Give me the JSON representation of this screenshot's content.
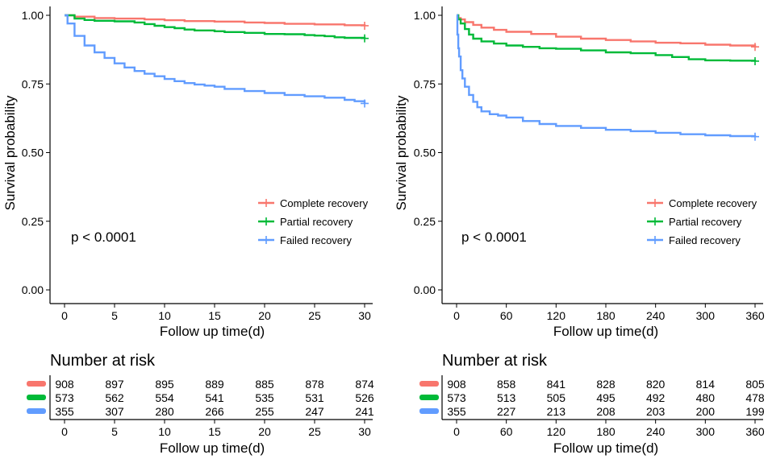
{
  "colors": {
    "complete": "#F8766D",
    "partial": "#00BA38",
    "failed": "#619CFF"
  },
  "chart_data": [
    {
      "type": "line",
      "subtype": "kaplan-meier",
      "xlabel": "Follow up time(d)",
      "ylabel": "Survival probability",
      "xlim": [
        0,
        30
      ],
      "ylim": [
        0,
        1
      ],
      "xticks": [
        0,
        5,
        10,
        15,
        20,
        25,
        30
      ],
      "yticks": [
        0.0,
        0.25,
        0.5,
        0.75,
        1.0
      ],
      "ytick_labels": [
        "0.00",
        "0.25",
        "0.50",
        "0.75",
        "1.00"
      ],
      "pvalue": "p < 0.0001",
      "legend": [
        "Complete recovery",
        "Partial recovery",
        "Failed recovery"
      ],
      "series": [
        {
          "name": "Complete recovery",
          "color_key": "complete",
          "x": [
            0,
            1,
            3,
            5,
            8,
            10,
            12,
            15,
            18,
            20,
            22,
            25,
            28,
            30
          ],
          "y": [
            1.0,
            0.995,
            0.99,
            0.988,
            0.985,
            0.982,
            0.979,
            0.977,
            0.974,
            0.972,
            0.969,
            0.967,
            0.964,
            0.962
          ]
        },
        {
          "name": "Partial recovery",
          "color_key": "partial",
          "x": [
            0,
            1,
            2,
            3,
            5,
            7,
            8,
            9,
            10,
            11,
            12,
            13,
            15,
            16,
            18,
            20,
            22,
            24,
            25,
            26,
            27,
            28,
            30
          ],
          "y": [
            1.0,
            0.988,
            0.983,
            0.98,
            0.978,
            0.974,
            0.968,
            0.962,
            0.957,
            0.953,
            0.948,
            0.945,
            0.942,
            0.939,
            0.936,
            0.932,
            0.931,
            0.928,
            0.926,
            0.924,
            0.92,
            0.918,
            0.916
          ]
        },
        {
          "name": "Failed recovery",
          "color_key": "failed",
          "x": [
            0,
            0.3,
            1,
            2,
            3,
            4,
            5,
            6,
            7,
            8,
            9,
            10,
            11,
            12,
            13,
            14,
            15,
            16,
            18,
            20,
            22,
            24,
            26,
            28,
            29,
            30
          ],
          "y": [
            1.0,
            0.97,
            0.925,
            0.89,
            0.865,
            0.845,
            0.825,
            0.81,
            0.797,
            0.787,
            0.778,
            0.768,
            0.76,
            0.753,
            0.748,
            0.744,
            0.74,
            0.732,
            0.724,
            0.717,
            0.71,
            0.705,
            0.7,
            0.692,
            0.687,
            0.679
          ]
        }
      ],
      "risk_table": {
        "title": "Number at risk",
        "xlabel": "Follow up time(d)",
        "times": [
          0,
          5,
          10,
          15,
          20,
          25,
          30
        ],
        "rows": [
          {
            "color_key": "complete",
            "values": [
              "908",
              "897",
              "895",
              "889",
              "885",
              "878",
              "874"
            ]
          },
          {
            "color_key": "partial",
            "values": [
              "573",
              "562",
              "554",
              "541",
              "535",
              "531",
              "526"
            ]
          },
          {
            "color_key": "failed",
            "values": [
              "355",
              "307",
              "280",
              "266",
              "255",
              "247",
              "241"
            ]
          }
        ]
      }
    },
    {
      "type": "line",
      "subtype": "kaplan-meier",
      "xlabel": "Follow up time(d)",
      "ylabel": "Survival probability",
      "xlim": [
        0,
        360
      ],
      "ylim": [
        0,
        1
      ],
      "xticks": [
        0,
        60,
        120,
        180,
        240,
        300,
        360
      ],
      "yticks": [
        0.0,
        0.25,
        0.5,
        0.75,
        1.0
      ],
      "ytick_labels": [
        "0.00",
        "0.25",
        "0.50",
        "0.75",
        "1.00"
      ],
      "pvalue": "p < 0.0001",
      "legend": [
        "Complete recovery",
        "Partial recovery",
        "Failed recovery"
      ],
      "series": [
        {
          "name": "Complete recovery",
          "color_key": "complete",
          "x": [
            0,
            2,
            5,
            10,
            20,
            30,
            45,
            60,
            90,
            120,
            150,
            180,
            210,
            240,
            270,
            300,
            330,
            360
          ],
          "y": [
            1.0,
            0.99,
            0.985,
            0.975,
            0.965,
            0.955,
            0.947,
            0.94,
            0.932,
            0.922,
            0.915,
            0.91,
            0.905,
            0.9,
            0.898,
            0.893,
            0.89,
            0.885
          ]
        },
        {
          "name": "Partial recovery",
          "color_key": "partial",
          "x": [
            0,
            2,
            5,
            10,
            15,
            20,
            30,
            45,
            60,
            80,
            100,
            120,
            150,
            180,
            210,
            240,
            260,
            280,
            300,
            330,
            360
          ],
          "y": [
            1.0,
            0.985,
            0.97,
            0.95,
            0.93,
            0.915,
            0.905,
            0.897,
            0.89,
            0.885,
            0.88,
            0.878,
            0.872,
            0.865,
            0.862,
            0.855,
            0.848,
            0.84,
            0.836,
            0.835,
            0.833
          ]
        },
        {
          "name": "Failed recovery",
          "color_key": "failed",
          "x": [
            0,
            1,
            2,
            3,
            5,
            7,
            10,
            15,
            20,
            25,
            30,
            40,
            50,
            60,
            80,
            100,
            120,
            150,
            180,
            210,
            240,
            270,
            300,
            330,
            360
          ],
          "y": [
            1.0,
            0.93,
            0.88,
            0.85,
            0.8,
            0.77,
            0.74,
            0.71,
            0.685,
            0.665,
            0.65,
            0.64,
            0.635,
            0.628,
            0.615,
            0.604,
            0.597,
            0.59,
            0.583,
            0.578,
            0.572,
            0.567,
            0.563,
            0.56,
            0.558
          ]
        }
      ],
      "risk_table": {
        "title": "Number at risk",
        "xlabel": "Follow up time(d)",
        "times": [
          0,
          60,
          120,
          180,
          240,
          300,
          360
        ],
        "rows": [
          {
            "color_key": "complete",
            "values": [
              "908",
              "858",
              "841",
              "828",
              "820",
              "814",
              "805"
            ]
          },
          {
            "color_key": "partial",
            "values": [
              "573",
              "513",
              "505",
              "495",
              "492",
              "480",
              "478"
            ]
          },
          {
            "color_key": "failed",
            "values": [
              "355",
              "227",
              "213",
              "208",
              "203",
              "200",
              "199"
            ]
          }
        ]
      }
    }
  ]
}
